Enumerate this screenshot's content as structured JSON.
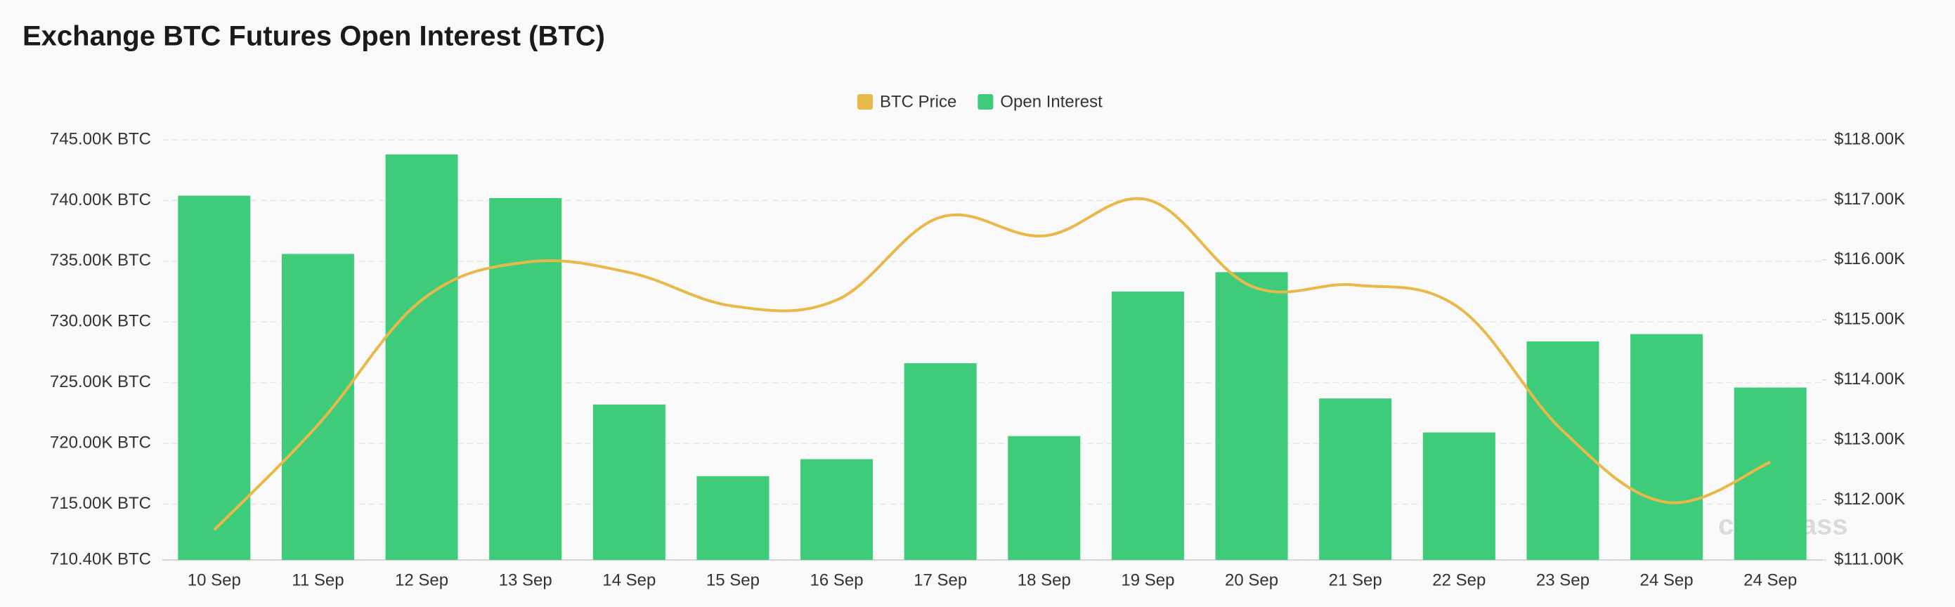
{
  "chart_data": {
    "type": "bar_line",
    "title": "Exchange BTC Futures Open Interest (BTC)",
    "watermark": "coinglass",
    "legend": "top",
    "grid": true,
    "categories": [
      "10 Sep",
      "11 Sep",
      "12 Sep",
      "13 Sep",
      "14 Sep",
      "15 Sep",
      "16 Sep",
      "17 Sep",
      "18 Sep",
      "19 Sep",
      "20 Sep",
      "21 Sep",
      "22 Sep",
      "23 Sep",
      "24 Sep",
      "24 Sep"
    ],
    "series": [
      {
        "name": "BTC Price",
        "type": "line",
        "axis": "y2",
        "color": "#e8b84a",
        "values": [
          111500,
          113250,
          115330,
          115960,
          115790,
          115230,
          115330,
          116710,
          116400,
          117000,
          115560,
          115580,
          115200,
          113150,
          111960,
          112630
        ]
      },
      {
        "name": "Open Interest",
        "type": "bar",
        "color": "#3ecc7a",
        "values": [
          740400,
          735600,
          743800,
          740200,
          723200,
          717300,
          718700,
          726600,
          720600,
          732500,
          734100,
          723700,
          720900,
          728400,
          729000,
          724600
        ]
      }
    ],
    "ylim": [
      710400,
      745000
    ],
    "yticks": [
      {
        "value": 710400,
        "label": "710.40K BTC"
      },
      {
        "value": 715000,
        "label": "715.00K BTC"
      },
      {
        "value": 720000,
        "label": "720.00K BTC"
      },
      {
        "value": 725000,
        "label": "725.00K BTC"
      },
      {
        "value": 730000,
        "label": "730.00K BTC"
      },
      {
        "value": 735000,
        "label": "735.00K BTC"
      },
      {
        "value": 740000,
        "label": "740.00K BTC"
      },
      {
        "value": 745000,
        "label": "745.00K BTC"
      }
    ],
    "y2lim": [
      111000,
      118000
    ],
    "y2ticks": [
      {
        "value": 111000,
        "label": "$111.00K"
      },
      {
        "value": 112000,
        "label": "$112.00K"
      },
      {
        "value": 113000,
        "label": "$113.00K"
      },
      {
        "value": 114000,
        "label": "$114.00K"
      },
      {
        "value": 115000,
        "label": "$115.00K"
      },
      {
        "value": 116000,
        "label": "$116.00K"
      },
      {
        "value": 117000,
        "label": "$117.00K"
      },
      {
        "value": 118000,
        "label": "$118.00K"
      }
    ]
  }
}
